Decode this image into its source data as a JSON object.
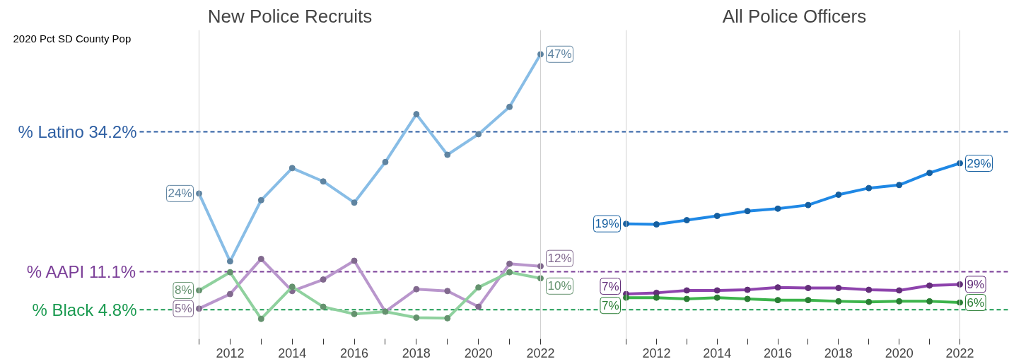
{
  "chart_data": [
    {
      "type": "line",
      "title": "New Police Recruits",
      "x": [
        2011,
        2012,
        2013,
        2014,
        2015,
        2016,
        2017,
        2018,
        2019,
        2020,
        2021,
        2022
      ],
      "xlim": [
        2011,
        2022
      ],
      "xticks": [
        {
          "value": 2011,
          "label": null
        },
        2012,
        {
          "value": 2013,
          "label": null
        },
        2014,
        {
          "value": 2015,
          "label": null
        },
        2016,
        {
          "value": 2017,
          "label": null
        },
        2018,
        {
          "value": 2019,
          "label": null
        },
        2020,
        {
          "value": 2021,
          "label": null
        },
        2022
      ],
      "ylim": [
        0,
        51
      ],
      "tick_labels": "x",
      "grid": false,
      "marker": "circle",
      "line_style": "solid",
      "annotations": [
        "2020 Pct SD County Pop"
      ],
      "series": [
        {
          "color": "#88bde6",
          "values": [
            24,
            12.8,
            22.9,
            28.2,
            26.0,
            22.5,
            29.2,
            37.1,
            30.4,
            33.8,
            38.3,
            47
          ],
          "value_labels": [
            "24%",
            null,
            null,
            null,
            null,
            null,
            null,
            null,
            null,
            null,
            null,
            "47%"
          ]
        },
        {
          "color": "#b996cc",
          "values": [
            5,
            7.4,
            13.2,
            7.9,
            9.8,
            12.9,
            4.5,
            8.2,
            7.9,
            5.3,
            12.4,
            12
          ],
          "value_labels": [
            "5%",
            null,
            null,
            null,
            null,
            null,
            null,
            null,
            null,
            null,
            null,
            "12%"
          ]
        },
        {
          "color": "#8fd19e",
          "values": [
            8,
            11.0,
            3.3,
            8.6,
            5.3,
            4.1,
            4.5,
            3.5,
            3.4,
            8.5,
            11.0,
            10
          ],
          "value_labels": [
            "8%",
            null,
            null,
            null,
            null,
            null,
            null,
            null,
            null,
            null,
            null,
            "10%"
          ]
        }
      ],
      "ref_lines": [
        {
          "axis": "y",
          "value": 34.2,
          "label": "% Latino 34.2%",
          "color": "#2e5fa3",
          "line_style": "dashed"
        },
        {
          "axis": "y",
          "value": 11.1,
          "label": "% AAPI 11.1%",
          "color": "#7b3f98",
          "line_style": "dashed"
        },
        {
          "axis": "y",
          "value": 4.8,
          "label": "% Black 4.8%",
          "color": "#1a9a50",
          "line_style": "dashed"
        }
      ]
    },
    {
      "type": "line",
      "title": "All Police Officers",
      "x": [
        2011,
        2012,
        2013,
        2014,
        2015,
        2016,
        2017,
        2018,
        2019,
        2020,
        2021,
        2022
      ],
      "xlim": [
        2011,
        2022
      ],
      "xticks": [
        {
          "value": 2011,
          "label": null
        },
        2012,
        {
          "value": 2013,
          "label": null
        },
        2014,
        {
          "value": 2015,
          "label": null
        },
        2016,
        {
          "value": 2017,
          "label": null
        },
        2018,
        {
          "value": 2019,
          "label": null
        },
        2020,
        {
          "value": 2021,
          "label": null
        },
        2022
      ],
      "ylim": [
        0,
        51
      ],
      "tick_labels": "x",
      "grid": false,
      "marker": "circle",
      "line_style": "solid",
      "series": [
        {
          "color": "#1f88e5",
          "values": [
            19,
            18.9,
            19.6,
            20.3,
            21.1,
            21.5,
            22.1,
            23.8,
            24.9,
            25.4,
            27.4,
            29
          ],
          "value_labels": [
            "19%",
            null,
            null,
            null,
            null,
            null,
            null,
            null,
            null,
            null,
            null,
            "29%"
          ]
        },
        {
          "color": "#8e44ad",
          "values": [
            7.4,
            7.6,
            8.0,
            8.0,
            8.1,
            8.5,
            8.4,
            8.4,
            8.1,
            8.0,
            8.8,
            9
          ],
          "value_labels": [
            "7%",
            null,
            null,
            null,
            null,
            null,
            null,
            null,
            null,
            null,
            null,
            "9%"
          ]
        },
        {
          "color": "#3cb44b",
          "values": [
            6.8,
            6.8,
            6.6,
            6.8,
            6.6,
            6.4,
            6.4,
            6.2,
            6.1,
            6.2,
            6.2,
            6
          ],
          "value_labels": [
            "7%",
            null,
            null,
            null,
            null,
            null,
            null,
            null,
            null,
            null,
            null,
            "6%"
          ]
        }
      ],
      "ref_lines": [
        {
          "axis": "y",
          "value": 34.2,
          "color": "#2e5fa3",
          "line_style": "dashed"
        },
        {
          "axis": "y",
          "value": 11.1,
          "color": "#7b3f98",
          "line_style": "dashed"
        },
        {
          "axis": "y",
          "value": 4.8,
          "color": "#1a9a50",
          "line_style": "dashed"
        }
      ]
    }
  ]
}
